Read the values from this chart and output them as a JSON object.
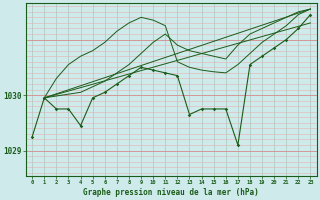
{
  "xlabel": "Graphe pression niveau de la mer (hPa)",
  "background_color": "#ceeaea",
  "plot_bg_color": "#ceeaea",
  "grid_color_v": "#b8d8d0",
  "grid_color_h": "#e8a0a0",
  "line_color": "#1a5c1a",
  "text_color": "#1a5c1a",
  "yticks": [
    1029,
    1030
  ],
  "ylim": [
    1028.55,
    1031.65
  ],
  "xlim": [
    -0.5,
    23.5
  ],
  "xticks": [
    0,
    1,
    2,
    3,
    4,
    5,
    6,
    7,
    8,
    9,
    10,
    11,
    12,
    13,
    14,
    15,
    16,
    17,
    18,
    19,
    20,
    21,
    22,
    23
  ],
  "series_marker": {
    "x": [
      0,
      1,
      2,
      3,
      4,
      5,
      6,
      7,
      8,
      9,
      10,
      11,
      12,
      13,
      14,
      15,
      16,
      17,
      18,
      19,
      20,
      21,
      22,
      23
    ],
    "y": [
      1029.25,
      1029.95,
      1029.75,
      1029.75,
      1029.45,
      1029.95,
      1030.05,
      1030.2,
      1030.35,
      1030.5,
      1030.45,
      1030.4,
      1030.35,
      1029.65,
      1029.75,
      1029.75,
      1029.75,
      1029.1,
      1030.55,
      1030.7,
      1030.85,
      1031.0,
      1031.2,
      1031.45
    ]
  },
  "series_fan_upper": {
    "x": [
      1,
      23
    ],
    "y": [
      1029.95,
      1031.55
    ]
  },
  "series_fan_lower": {
    "x": [
      1,
      23
    ],
    "y": [
      1029.95,
      1031.3
    ]
  },
  "series_upper_envelope": {
    "x": [
      1,
      4,
      5,
      6,
      7,
      8,
      9,
      10,
      11,
      12,
      13,
      14,
      15,
      16,
      17,
      18,
      19,
      20,
      21,
      22,
      23
    ],
    "y": [
      1029.95,
      1030.05,
      1030.15,
      1030.25,
      1030.4,
      1030.55,
      1030.75,
      1030.95,
      1031.1,
      1030.9,
      1030.8,
      1030.75,
      1030.7,
      1030.65,
      1030.9,
      1031.1,
      1031.2,
      1031.3,
      1031.4,
      1031.5,
      1031.55
    ]
  },
  "series_high_peak": {
    "x": [
      1,
      2,
      3,
      4,
      5,
      6,
      7,
      8,
      9,
      10,
      11,
      12,
      13,
      14,
      15,
      16,
      17,
      18,
      19,
      20,
      21,
      22,
      23
    ],
    "y": [
      1029.95,
      1030.3,
      1030.55,
      1030.7,
      1030.8,
      1030.95,
      1031.15,
      1031.3,
      1031.4,
      1031.35,
      1031.25,
      1030.6,
      1030.5,
      1030.45,
      1030.42,
      1030.4,
      1030.55,
      1030.75,
      1030.95,
      1031.1,
      1031.25,
      1031.45,
      1031.55
    ]
  }
}
